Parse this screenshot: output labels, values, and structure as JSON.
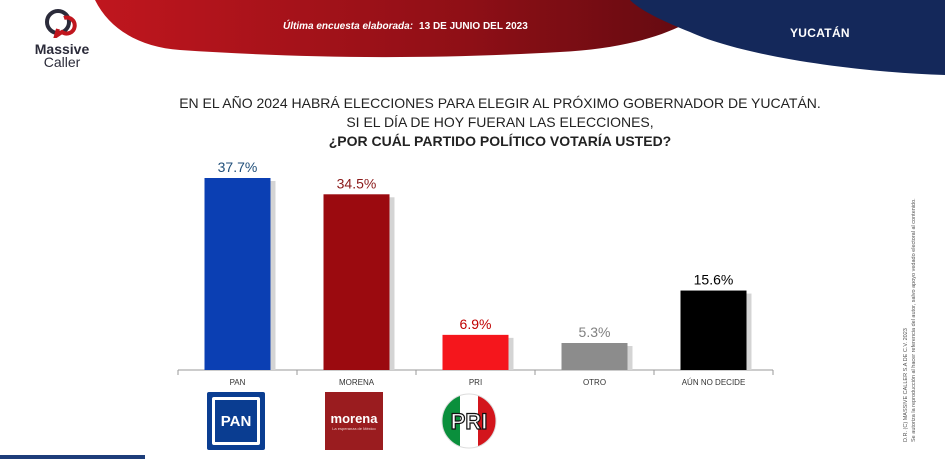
{
  "header": {
    "brand": "Massive",
    "brand_sub": "Caller",
    "survey_label": "Última encuesta elaborada:",
    "survey_date": "13 DE JUNIO DEL 2023",
    "region": "YUCATÁN"
  },
  "question": {
    "line1": "EN EL AÑO 2024 HABRÁ ELECCIONES PARA ELEGIR AL PRÓXIMO GOBERNADOR DE YUCATÁN.",
    "line2": "SI EL DÍA DE HOY FUERAN LAS ELECCIONES,",
    "line3": "¿POR CUÁL PARTIDO POLÍTICO VOTARÍA USTED?"
  },
  "chart_data": {
    "type": "bar",
    "categories": [
      "PAN",
      "MORENA",
      "PRI",
      "OTRO",
      "AÚN NO DECIDE"
    ],
    "values": [
      37.7,
      34.5,
      6.9,
      5.3,
      15.6
    ],
    "data_labels": [
      "37.7%",
      "34.5%",
      "6.9%",
      "5.3%",
      "15.6%"
    ],
    "colors": [
      "#0b3fb3",
      "#9b0a0f",
      "#f5161c",
      "#8c8c8c",
      "#000000"
    ],
    "label_colors": [
      "#1f4e79",
      "#8b1a1a",
      "#c00000",
      "#808080",
      "#000000"
    ],
    "ylim": [
      0,
      40
    ],
    "grid": false,
    "legend": "none"
  },
  "party_logos": {
    "pan": "PAN",
    "morena": "morena",
    "morena_tag": "La esperanza de México",
    "pri": "PRI"
  },
  "side_note": {
    "line1": "D.R. (C) MASSIVE CALLER S.A DE C.V. 2023",
    "line2": "Se autoriza la reproducción al hacer referencia del autor, salvo apoyo vedado electoral al contenido."
  },
  "colors": {
    "banner_red": "#b0141c",
    "banner_navy": "#14285a",
    "axis": "#9a9a9a"
  }
}
